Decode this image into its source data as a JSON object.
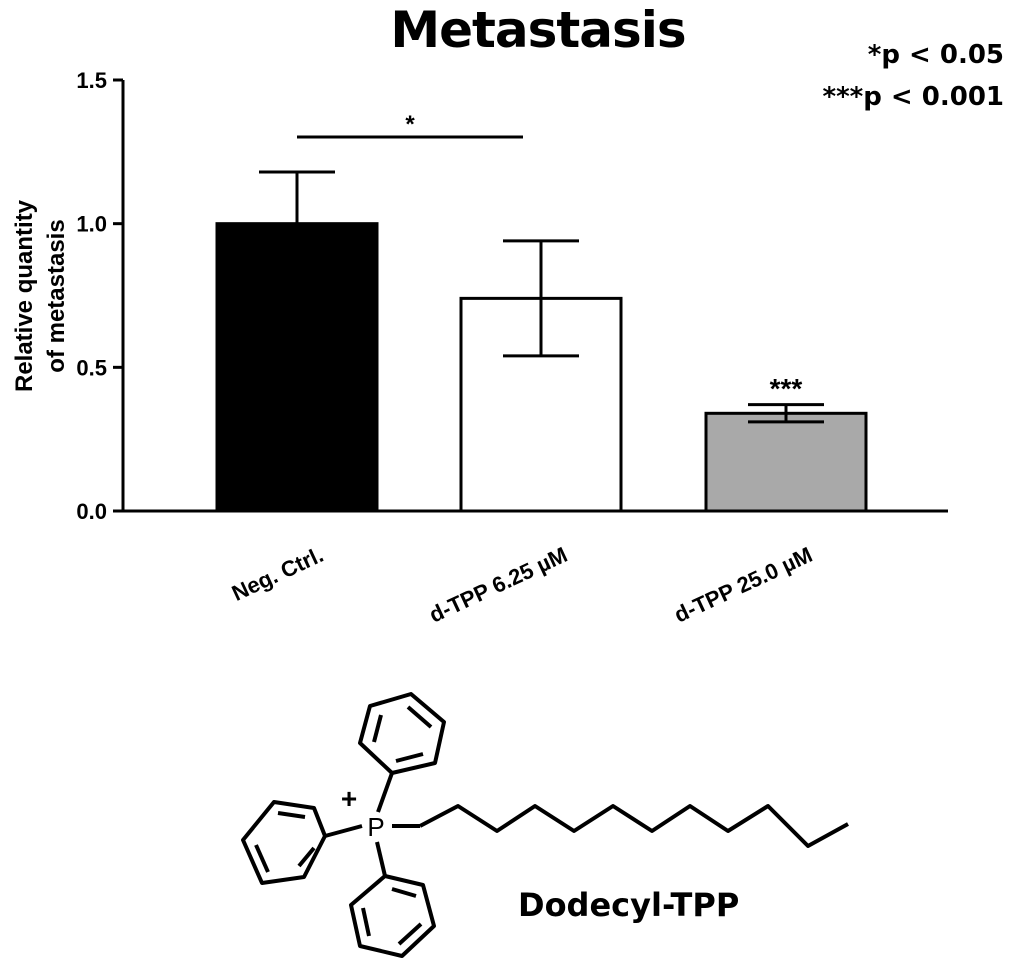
{
  "chart_data": {
    "type": "bar",
    "title": "Metastasis",
    "ylabel_lines": [
      "Relative quantity",
      "of metastasis"
    ],
    "xlabel": "",
    "ylim": [
      0,
      1.5
    ],
    "yticks": [
      "0.0",
      "0.5",
      "1.0",
      "1.5"
    ],
    "ytick_values": [
      0,
      0.5,
      1.0,
      1.5
    ],
    "categories": [
      "Neg. Ctrl.",
      "d-TPP 6.25 µM",
      "d-TPP 25.0 µM"
    ],
    "values": [
      1.0,
      0.74,
      0.34
    ],
    "errors": [
      0.18,
      0.2,
      0.03
    ],
    "bar_colors": [
      "#000000",
      "#ffffff",
      "#a9a9a9"
    ],
    "significance": [
      {
        "label": "*",
        "type": "bracket",
        "from": 0,
        "to": 1
      },
      {
        "label": "***",
        "type": "above",
        "bar": 2
      }
    ],
    "legend_notes": [
      "*p < 0.05",
      "***p < 0.001"
    ],
    "grid": false
  },
  "figure": {
    "compound_label": "Dodecyl-TPP",
    "atom_p": "P",
    "charge": "+"
  }
}
